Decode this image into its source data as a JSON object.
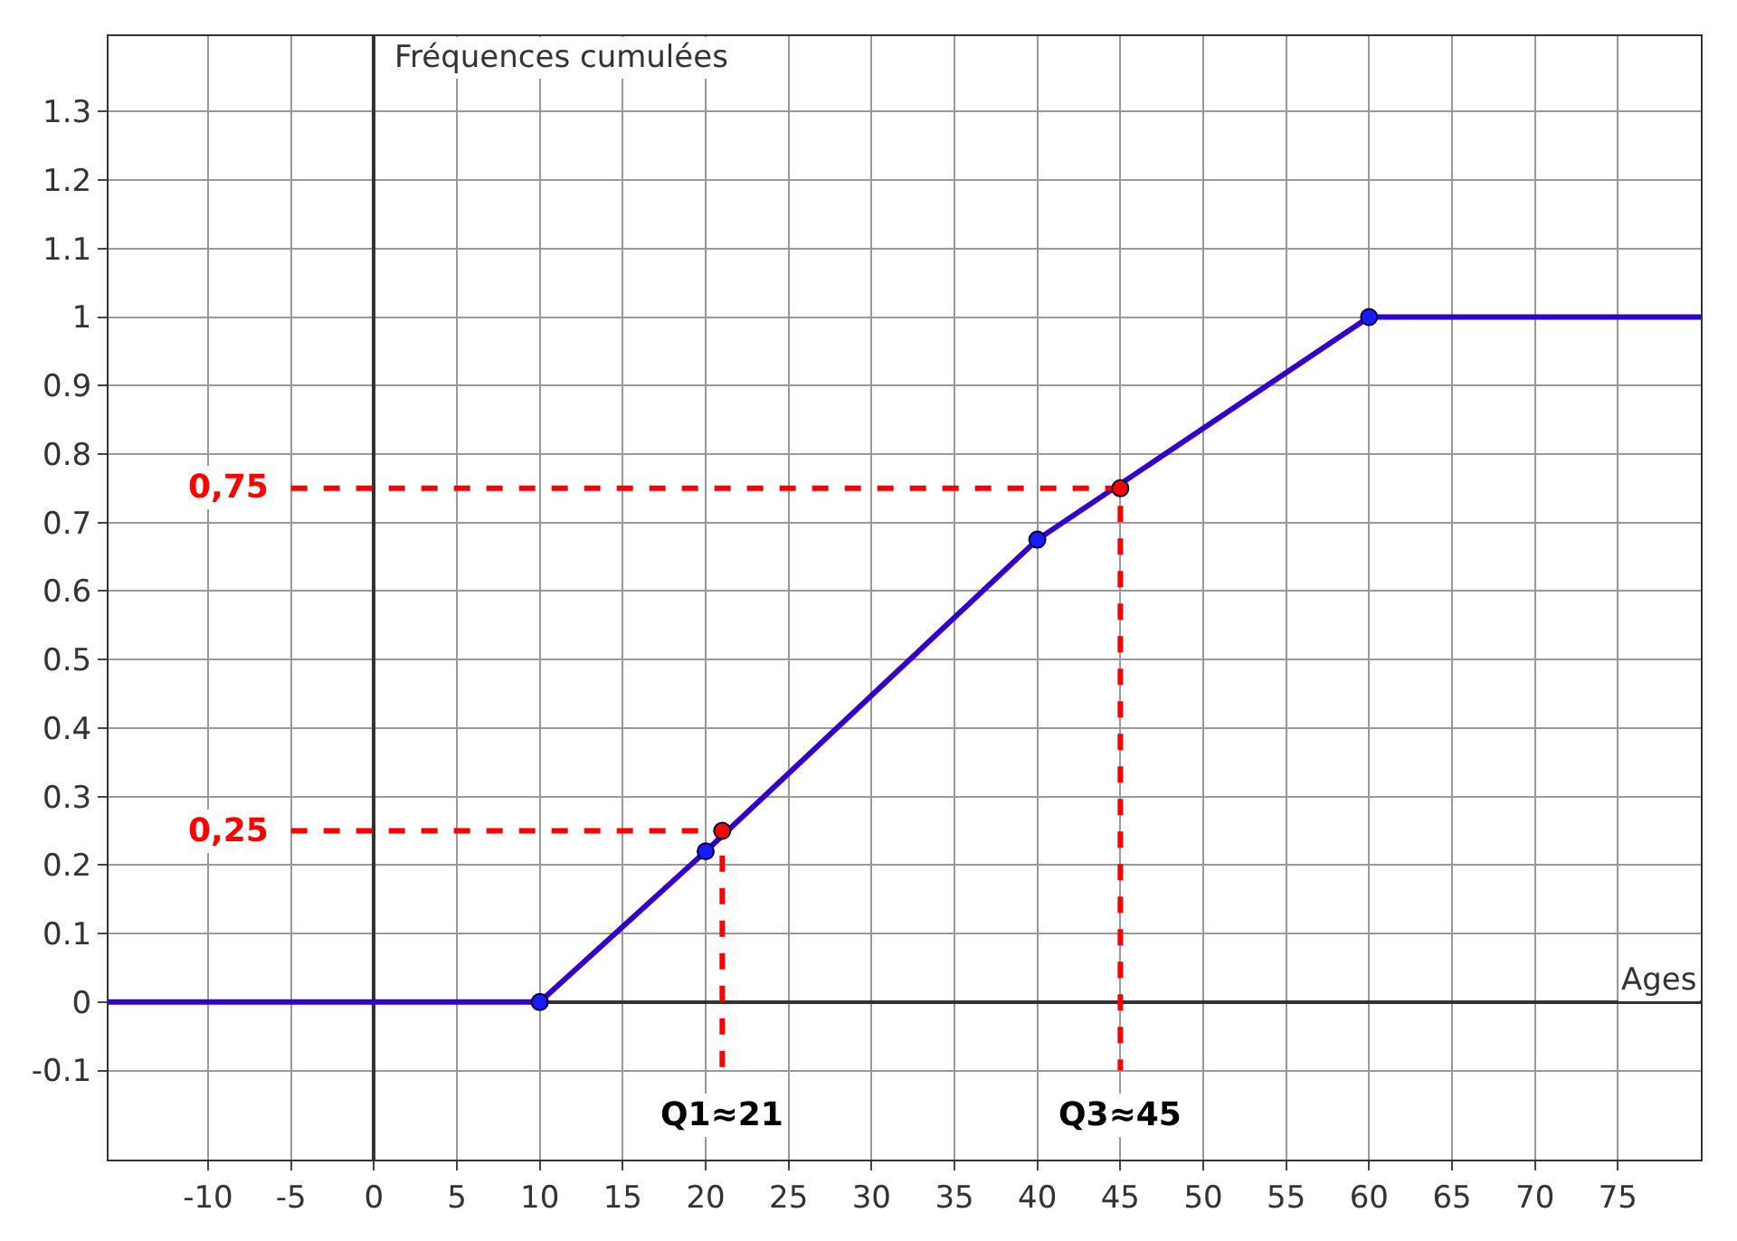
{
  "chart_data": {
    "type": "line",
    "xlabel": "Ages",
    "ylabel": "Fréquences cumulées",
    "xlim": [
      -16,
      80
    ],
    "ylim": [
      -0.23,
      1.41
    ],
    "xticks": [
      -10,
      -5,
      0,
      5,
      10,
      15,
      20,
      25,
      30,
      35,
      40,
      45,
      50,
      55,
      60,
      65,
      70,
      75
    ],
    "yticks": [
      -0.1,
      0,
      0.1,
      0.2,
      0.3,
      0.4,
      0.5,
      0.6,
      0.7,
      0.8,
      0.9,
      1,
      1.1,
      1.2,
      1.3
    ],
    "grid": true,
    "series": [
      {
        "type": "line",
        "color": "#3300cc",
        "x": [
          -16,
          10,
          20,
          40,
          60,
          80
        ],
        "values": [
          0,
          0,
          0.22,
          0.675,
          1,
          1
        ],
        "marker": "none",
        "line_style": "solid"
      },
      {
        "type": "scatter",
        "color": "#1a1aff",
        "x": [
          10,
          20,
          40,
          60
        ],
        "values": [
          0,
          0.22,
          0.675,
          1
        ],
        "marker": "circle"
      },
      {
        "type": "line",
        "color": "#ff0000",
        "x": [
          -5,
          21,
          21
        ],
        "values": [
          0.25,
          0.25,
          -0.1
        ],
        "marker": "none",
        "line_style": "dashed"
      },
      {
        "type": "line",
        "color": "#ff0000",
        "x": [
          -5,
          45,
          45
        ],
        "values": [
          0.75,
          0.75,
          -0.1
        ],
        "marker": "none",
        "line_style": "dashed"
      },
      {
        "type": "scatter",
        "color": "#ff0000",
        "x": [
          21,
          45
        ],
        "values": [
          0.25,
          0.75
        ],
        "marker": "circle"
      }
    ],
    "annotations": [
      "0,75",
      "0,25",
      "Q1≈21",
      "Q3≈45"
    ]
  }
}
